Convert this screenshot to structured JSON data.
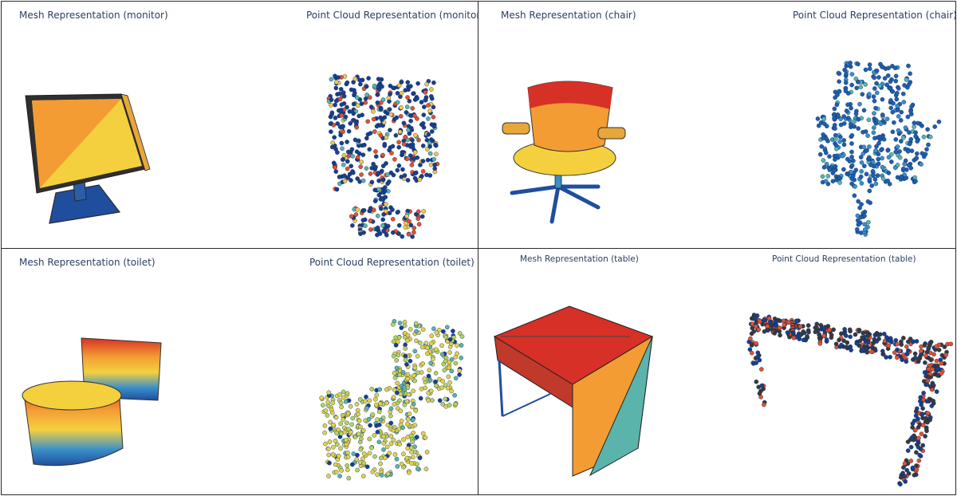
{
  "panels": [
    {
      "id": "monitor",
      "mesh_title": "Mesh Representation (monitor)",
      "cloud_title": "Point Cloud Representation (monitor)"
    },
    {
      "id": "chair",
      "mesh_title": "Mesh Representation (chair)",
      "cloud_title": "Point Cloud Representation (chair)"
    },
    {
      "id": "toilet",
      "mesh_title": "Mesh Representation (toilet)",
      "cloud_title": "Point Cloud Representation (toilet)"
    },
    {
      "id": "table",
      "mesh_title": "Mesh Representation (table)",
      "cloud_title": "Point Cloud Representation (table)"
    }
  ],
  "colorscale": {
    "mesh": [
      "#1f4e9e",
      "#3a8fc9",
      "#f4d03f",
      "#f39c33",
      "#d73027"
    ],
    "cloud_dark": "#1b3f8a",
    "cloud_accents": [
      "#e8502a",
      "#f3c84b",
      "#5ab4ac",
      "#3a3a3a"
    ]
  }
}
